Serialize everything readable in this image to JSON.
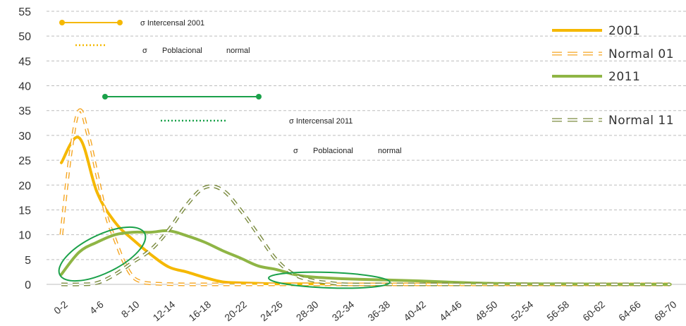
{
  "chart_data": {
    "type": "line",
    "categories": [
      "0-2",
      "4-6",
      "8-10",
      "12-14",
      "16-18",
      "20-22",
      "24-26",
      "28-30",
      "32-34",
      "36-38",
      "40-42",
      "44-46",
      "48-50",
      "52-54",
      "56-58",
      "60-62",
      "64-66",
      "68-70"
    ],
    "yticks": [
      "0",
      "5",
      "10",
      "15",
      "20",
      "25",
      "30",
      "35",
      "40",
      "45",
      "50",
      "55"
    ],
    "ylim": [
      0,
      55
    ],
    "grid": true,
    "legend_position": "top-right",
    "series": [
      {
        "name": "2001",
        "style": "solid",
        "color": "#f5b800",
        "x": [
          0,
          0.5,
          1,
          1.5,
          2,
          2.5,
          3,
          3.5,
          4,
          4.5,
          5,
          5.5,
          6,
          7,
          8,
          9,
          10,
          11,
          12,
          13,
          14,
          15,
          16,
          17
        ],
        "values": [
          24.5,
          29.5,
          18.5,
          12.5,
          9.0,
          6.0,
          3.5,
          2.5,
          1.4,
          0.5,
          0.3,
          0.2,
          0.1,
          0.1,
          0.05,
          0,
          0,
          0,
          0,
          0,
          0,
          0,
          0,
          0
        ]
      },
      {
        "name": "Normal 01",
        "style": "dashed",
        "color": "#f5a623",
        "x": [
          0,
          0.25,
          0.5,
          0.75,
          1,
          1.25,
          1.5,
          1.75,
          2,
          2.25,
          2.5,
          3,
          3.5,
          4,
          6,
          10,
          17
        ],
        "values": [
          10,
          26,
          35,
          30,
          22,
          14,
          9,
          4.5,
          1.5,
          0.5,
          0.2,
          0.05,
          0,
          0,
          0,
          0,
          0
        ]
      },
      {
        "name": "2011",
        "style": "solid",
        "color": "#8fb545",
        "x": [
          0,
          0.5,
          1,
          1.5,
          2,
          2.5,
          3,
          3.5,
          4,
          4.5,
          5,
          5.5,
          6,
          6.5,
          7,
          8,
          9,
          10,
          11,
          12,
          13,
          14,
          15,
          16,
          17
        ],
        "values": [
          2,
          6.5,
          8.5,
          10,
          10.5,
          10.5,
          10.8,
          9.8,
          8.5,
          6.8,
          5.3,
          3.7,
          3.0,
          2.0,
          1.5,
          1.1,
          0.9,
          0.7,
          0.4,
          0.2,
          0.1,
          0.1,
          0.05,
          0,
          0
        ]
      },
      {
        "name": "Normal 11",
        "style": "dashed",
        "color": "#7a8a3e",
        "x": [
          0,
          0.5,
          1,
          1.5,
          2,
          2.5,
          3,
          3.5,
          4,
          4.5,
          5,
          5.5,
          6,
          6.5,
          7,
          7.5,
          8,
          9,
          10,
          17
        ],
        "values": [
          0,
          0,
          0.3,
          2,
          4.5,
          7,
          11,
          16,
          19.5,
          19,
          15,
          10,
          5,
          2,
          0.8,
          0.3,
          0,
          0,
          0,
          0
        ]
      }
    ],
    "annotations": [
      {
        "label": "σ Intercensal 2001",
        "line": "solid",
        "color": "#f5b800"
      },
      {
        "label_parts": [
          "σ",
          "Poblacional",
          "normal"
        ],
        "line": "dotted",
        "color": "#f5b800"
      },
      {
        "label": "σ Intercensal 2011",
        "line": "solid",
        "color": "#1aa14a"
      },
      {
        "label_parts": [
          "σ",
          "Poblacional",
          "normal"
        ],
        "line": "dotted",
        "color": "#1aa14a"
      }
    ],
    "highlight_ellipses_color": "#1aa14a"
  }
}
